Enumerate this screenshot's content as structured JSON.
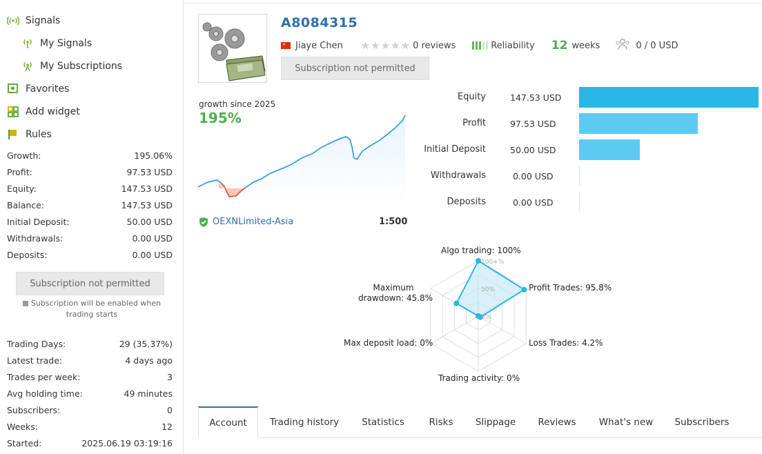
{
  "sidebar": {
    "nav": [
      {
        "label": "Signals",
        "icon": "signal-broadcast-icon"
      },
      {
        "label": "My Signals",
        "icon": "signal-icon"
      },
      {
        "label": "My Subscriptions",
        "icon": "signal-subscription-icon"
      },
      {
        "label": "Favorites",
        "icon": "favorite-icon"
      },
      {
        "label": "Add widget",
        "icon": "widget-icon"
      },
      {
        "label": "Rules",
        "icon": "flag-icon"
      }
    ],
    "stats": [
      {
        "label": "Growth:",
        "value": "195.06%"
      },
      {
        "label": "Profit:",
        "value": "97.53 USD"
      },
      {
        "label": "Equity:",
        "value": "147.53 USD"
      },
      {
        "label": "Balance:",
        "value": "147.53 USD"
      },
      {
        "label": "Initial Deposit:",
        "value": "50.00 USD"
      },
      {
        "label": "Withdrawals:",
        "value": "0.00 USD"
      },
      {
        "label": "Deposits:",
        "value": "0.00 USD"
      }
    ],
    "subscribe_label": "Subscription not permitted",
    "note_line1": "Subscription will be enabled when",
    "note_line2": "trading starts",
    "stats2": [
      {
        "label": "Trading Days:",
        "value": "29 (35.37%)"
      },
      {
        "label": "Latest trade:",
        "value": "4 days ago"
      },
      {
        "label": "Trades per week:",
        "value": "3"
      },
      {
        "label": "Avg holding time:",
        "value": "49 minutes"
      },
      {
        "label": "Subscribers:",
        "value": "0"
      },
      {
        "label": "Weeks:",
        "value": "12"
      },
      {
        "label": "Started:",
        "value": "2025.06.19 03:19:16"
      }
    ]
  },
  "signal": {
    "name": "A8084315",
    "author": "Jiaye Chen",
    "reviews": "0 reviews",
    "reliability": "Reliability",
    "weeks_num": "12",
    "weeks_label": "weeks",
    "subscribers": "0 / 0 USD",
    "subscribe_label": "Subscription not permitted",
    "growth_caption": "growth since 2025",
    "growth_value": "195%",
    "broker": "OEXNLimited-Asia",
    "leverage": "1:500",
    "accent": "#2e6fa8",
    "green": "#4caf50"
  },
  "bars": [
    {
      "label": "Equity",
      "value": "147.53 USD",
      "amount": 147.53,
      "color": "#29b6e8"
    },
    {
      "label": "Profit",
      "value": "97.53 USD",
      "amount": 97.53,
      "color": "#5ccbf4"
    },
    {
      "label": "Initial Deposit",
      "value": "50.00 USD",
      "amount": 50.0,
      "color": "#5ccbf4"
    },
    {
      "label": "Withdrawals",
      "value": "0.00 USD",
      "amount": 0,
      "color": "#5ccbf4"
    },
    {
      "label": "Deposits",
      "value": "0.00 USD",
      "amount": 0,
      "color": "#5ccbf4"
    }
  ],
  "radar": {
    "algo": "Algo trading: 100%",
    "profit": "Profit Trades: 95.8%",
    "loss": "Loss Trades: 4.2%",
    "activity": "Trading activity: 0%",
    "deposit_load": "Max deposit load: 0%",
    "drawdown_1": "Maximum",
    "drawdown_2": "drawdown: 45.8%",
    "tick_100": "100+%",
    "tick_50": "50%",
    "tick_0": "0%",
    "values": [
      100,
      95.8,
      4.2,
      0,
      0,
      45.8
    ]
  },
  "tabs": [
    "Account",
    "Trading history",
    "Statistics",
    "Risks",
    "Slippage",
    "Reviews",
    "What's new",
    "Subscribers"
  ]
}
